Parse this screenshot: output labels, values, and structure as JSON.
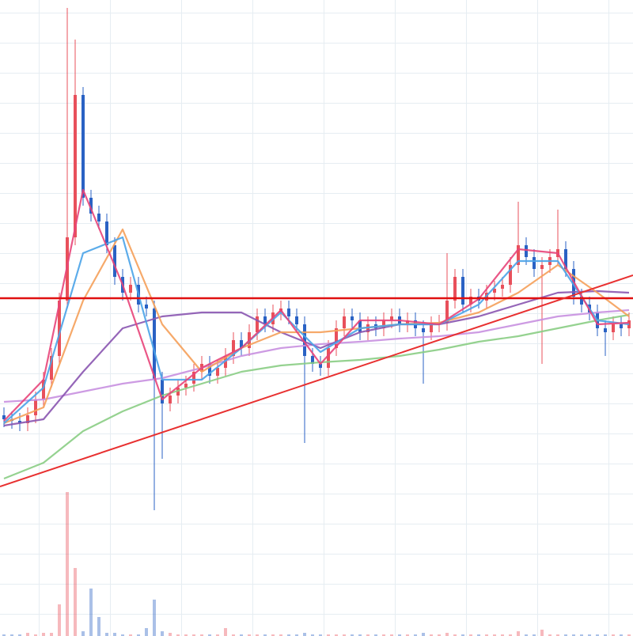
{
  "chart_data": {
    "type": "candlestick",
    "xlim": [
      -0.5,
      79.5
    ],
    "ylim": [
      0,
      804
    ],
    "up_color": "#e8505b",
    "down_color": "#2a62c4",
    "open": [
      279,
      274,
      272,
      269,
      279,
      299,
      324,
      354,
      424,
      504,
      684,
      554,
      534,
      524,
      494,
      454,
      434,
      444,
      419,
      414,
      324,
      294,
      304,
      314,
      319,
      334,
      344,
      329,
      339,
      354,
      374,
      364,
      384,
      404,
      394,
      409,
      414,
      404,
      394,
      354,
      344,
      339,
      364,
      389,
      404,
      399,
      384,
      394,
      389,
      399,
      404,
      394,
      399,
      389,
      384,
      394,
      396,
      424,
      454,
      419,
      429,
      424,
      434,
      439,
      444,
      469,
      494,
      479,
      464,
      469,
      479,
      489,
      464,
      429,
      419,
      409,
      389,
      384,
      394,
      389
    ],
    "high": [
      289,
      284,
      282,
      289,
      309,
      334,
      364,
      434,
      794,
      754,
      694,
      564,
      544,
      534,
      504,
      464,
      454,
      454,
      429,
      424,
      334,
      314,
      324,
      329,
      344,
      354,
      354,
      349,
      364,
      384,
      384,
      394,
      414,
      414,
      419,
      424,
      424,
      414,
      404,
      364,
      354,
      374,
      399,
      414,
      414,
      409,
      404,
      404,
      409,
      414,
      414,
      409,
      409,
      399,
      404,
      406,
      484,
      464,
      464,
      439,
      439,
      444,
      449,
      454,
      479,
      549,
      504,
      489,
      479,
      489,
      539,
      499,
      474,
      439,
      429,
      419,
      399,
      404,
      404,
      409
    ],
    "low": [
      264,
      262,
      259,
      259,
      269,
      289,
      314,
      344,
      414,
      494,
      544,
      524,
      514,
      484,
      444,
      424,
      424,
      409,
      404,
      159,
      224,
      284,
      294,
      304,
      309,
      324,
      319,
      319,
      329,
      344,
      354,
      354,
      374,
      384,
      384,
      399,
      394,
      384,
      244,
      334,
      329,
      329,
      354,
      379,
      389,
      374,
      374,
      379,
      379,
      389,
      384,
      384,
      379,
      319,
      374,
      384,
      386,
      414,
      409,
      409,
      414,
      414,
      424,
      429,
      434,
      459,
      469,
      454,
      344,
      459,
      469,
      454,
      419,
      409,
      399,
      379,
      354,
      374,
      379,
      379
    ],
    "close": [
      274,
      272,
      269,
      279,
      299,
      324,
      354,
      424,
      504,
      684,
      554,
      534,
      524,
      494,
      454,
      434,
      444,
      419,
      414,
      324,
      294,
      304,
      314,
      319,
      334,
      344,
      329,
      339,
      354,
      374,
      364,
      384,
      404,
      394,
      409,
      414,
      404,
      394,
      354,
      344,
      339,
      364,
      389,
      404,
      399,
      384,
      394,
      389,
      399,
      404,
      394,
      399,
      389,
      384,
      394,
      396,
      424,
      454,
      419,
      429,
      424,
      434,
      439,
      444,
      469,
      494,
      479,
      464,
      469,
      479,
      489,
      464,
      429,
      419,
      409,
      389,
      384,
      394,
      389,
      399
    ],
    "series": [
      {
        "color": "#8acd84",
        "x": [
          0,
          5,
          10,
          15,
          20,
          25,
          30,
          35,
          40,
          45,
          50,
          55,
          60,
          65,
          70,
          75,
          79
        ],
        "values": [
          199,
          219,
          259,
          284,
          304,
          319,
          334,
          342,
          346,
          349,
          354,
          362,
          372,
          379,
          389,
          399,
          406
        ]
      },
      {
        "color": "#c890e0",
        "x": [
          0,
          5,
          10,
          15,
          20,
          25,
          30,
          35,
          40,
          45,
          50,
          55,
          60,
          65,
          70,
          75,
          79
        ],
        "values": [
          296,
          299,
          309,
          319,
          326,
          339,
          354,
          364,
          369,
          372,
          376,
          379,
          384,
          394,
          404,
          409,
          412
        ]
      },
      {
        "color": "#8a55b0",
        "x": [
          0,
          5,
          10,
          15,
          20,
          25,
          30,
          35,
          40,
          45,
          50,
          55,
          60,
          65,
          70,
          75,
          79
        ],
        "values": [
          266,
          274,
          334,
          389,
          404,
          409,
          409,
          384,
          364,
          384,
          394,
          394,
          404,
          419,
          434,
          436,
          434
        ]
      },
      {
        "color": "#f5a05a",
        "x": [
          0,
          5,
          10,
          15,
          20,
          25,
          30,
          35,
          40,
          45,
          50,
          55,
          60,
          65,
          70,
          75,
          79
        ],
        "values": [
          269,
          289,
          424,
          514,
          394,
          334,
          364,
          384,
          384,
          389,
          394,
          396,
          409,
          434,
          469,
          434,
          404
        ]
      },
      {
        "color": "#4aa3e8",
        "x": [
          0,
          5,
          10,
          15,
          20,
          25,
          30,
          35,
          40,
          45,
          50,
          55,
          60,
          65,
          70,
          75,
          79
        ],
        "values": [
          269,
          314,
          484,
          504,
          324,
          324,
          364,
          409,
          359,
          389,
          394,
          394,
          419,
          474,
          474,
          399,
          394
        ]
      },
      {
        "color": "#e8457a",
        "x": [
          0,
          5,
          10,
          15,
          20,
          25,
          30,
          35,
          40,
          45,
          50,
          55,
          60,
          65,
          70,
          75,
          79
        ],
        "values": [
          272,
          324,
          564,
          444,
          299,
          339,
          364,
          412,
          344,
          399,
          399,
          394,
          426,
          489,
          484,
          394,
          396
        ]
      }
    ],
    "hline": {
      "value": 427,
      "color": "#e01010"
    },
    "trendline": {
      "x": [
        -0.5,
        79.5
      ],
      "values": [
        189,
        456
      ],
      "color": "#e83030"
    },
    "volume": {
      "ylim": [
        0,
        100
      ],
      "values": [
        1,
        1,
        1,
        2,
        1,
        2,
        2,
        20,
        91,
        43,
        3,
        30,
        12,
        2,
        2,
        1,
        1,
        1,
        5,
        23,
        3,
        2,
        1,
        1,
        1,
        1,
        1,
        1,
        5,
        1,
        1,
        1,
        1,
        1,
        1,
        1,
        1,
        1,
        2,
        1,
        1,
        1,
        1,
        1,
        1,
        1,
        1,
        1,
        1,
        1,
        1,
        1,
        1,
        2,
        1,
        1,
        2,
        1,
        1,
        1,
        1,
        1,
        1,
        1,
        1,
        3,
        1,
        1,
        4,
        1,
        1,
        1,
        1,
        1,
        1,
        1,
        1,
        1,
        1,
        1
      ]
    }
  }
}
